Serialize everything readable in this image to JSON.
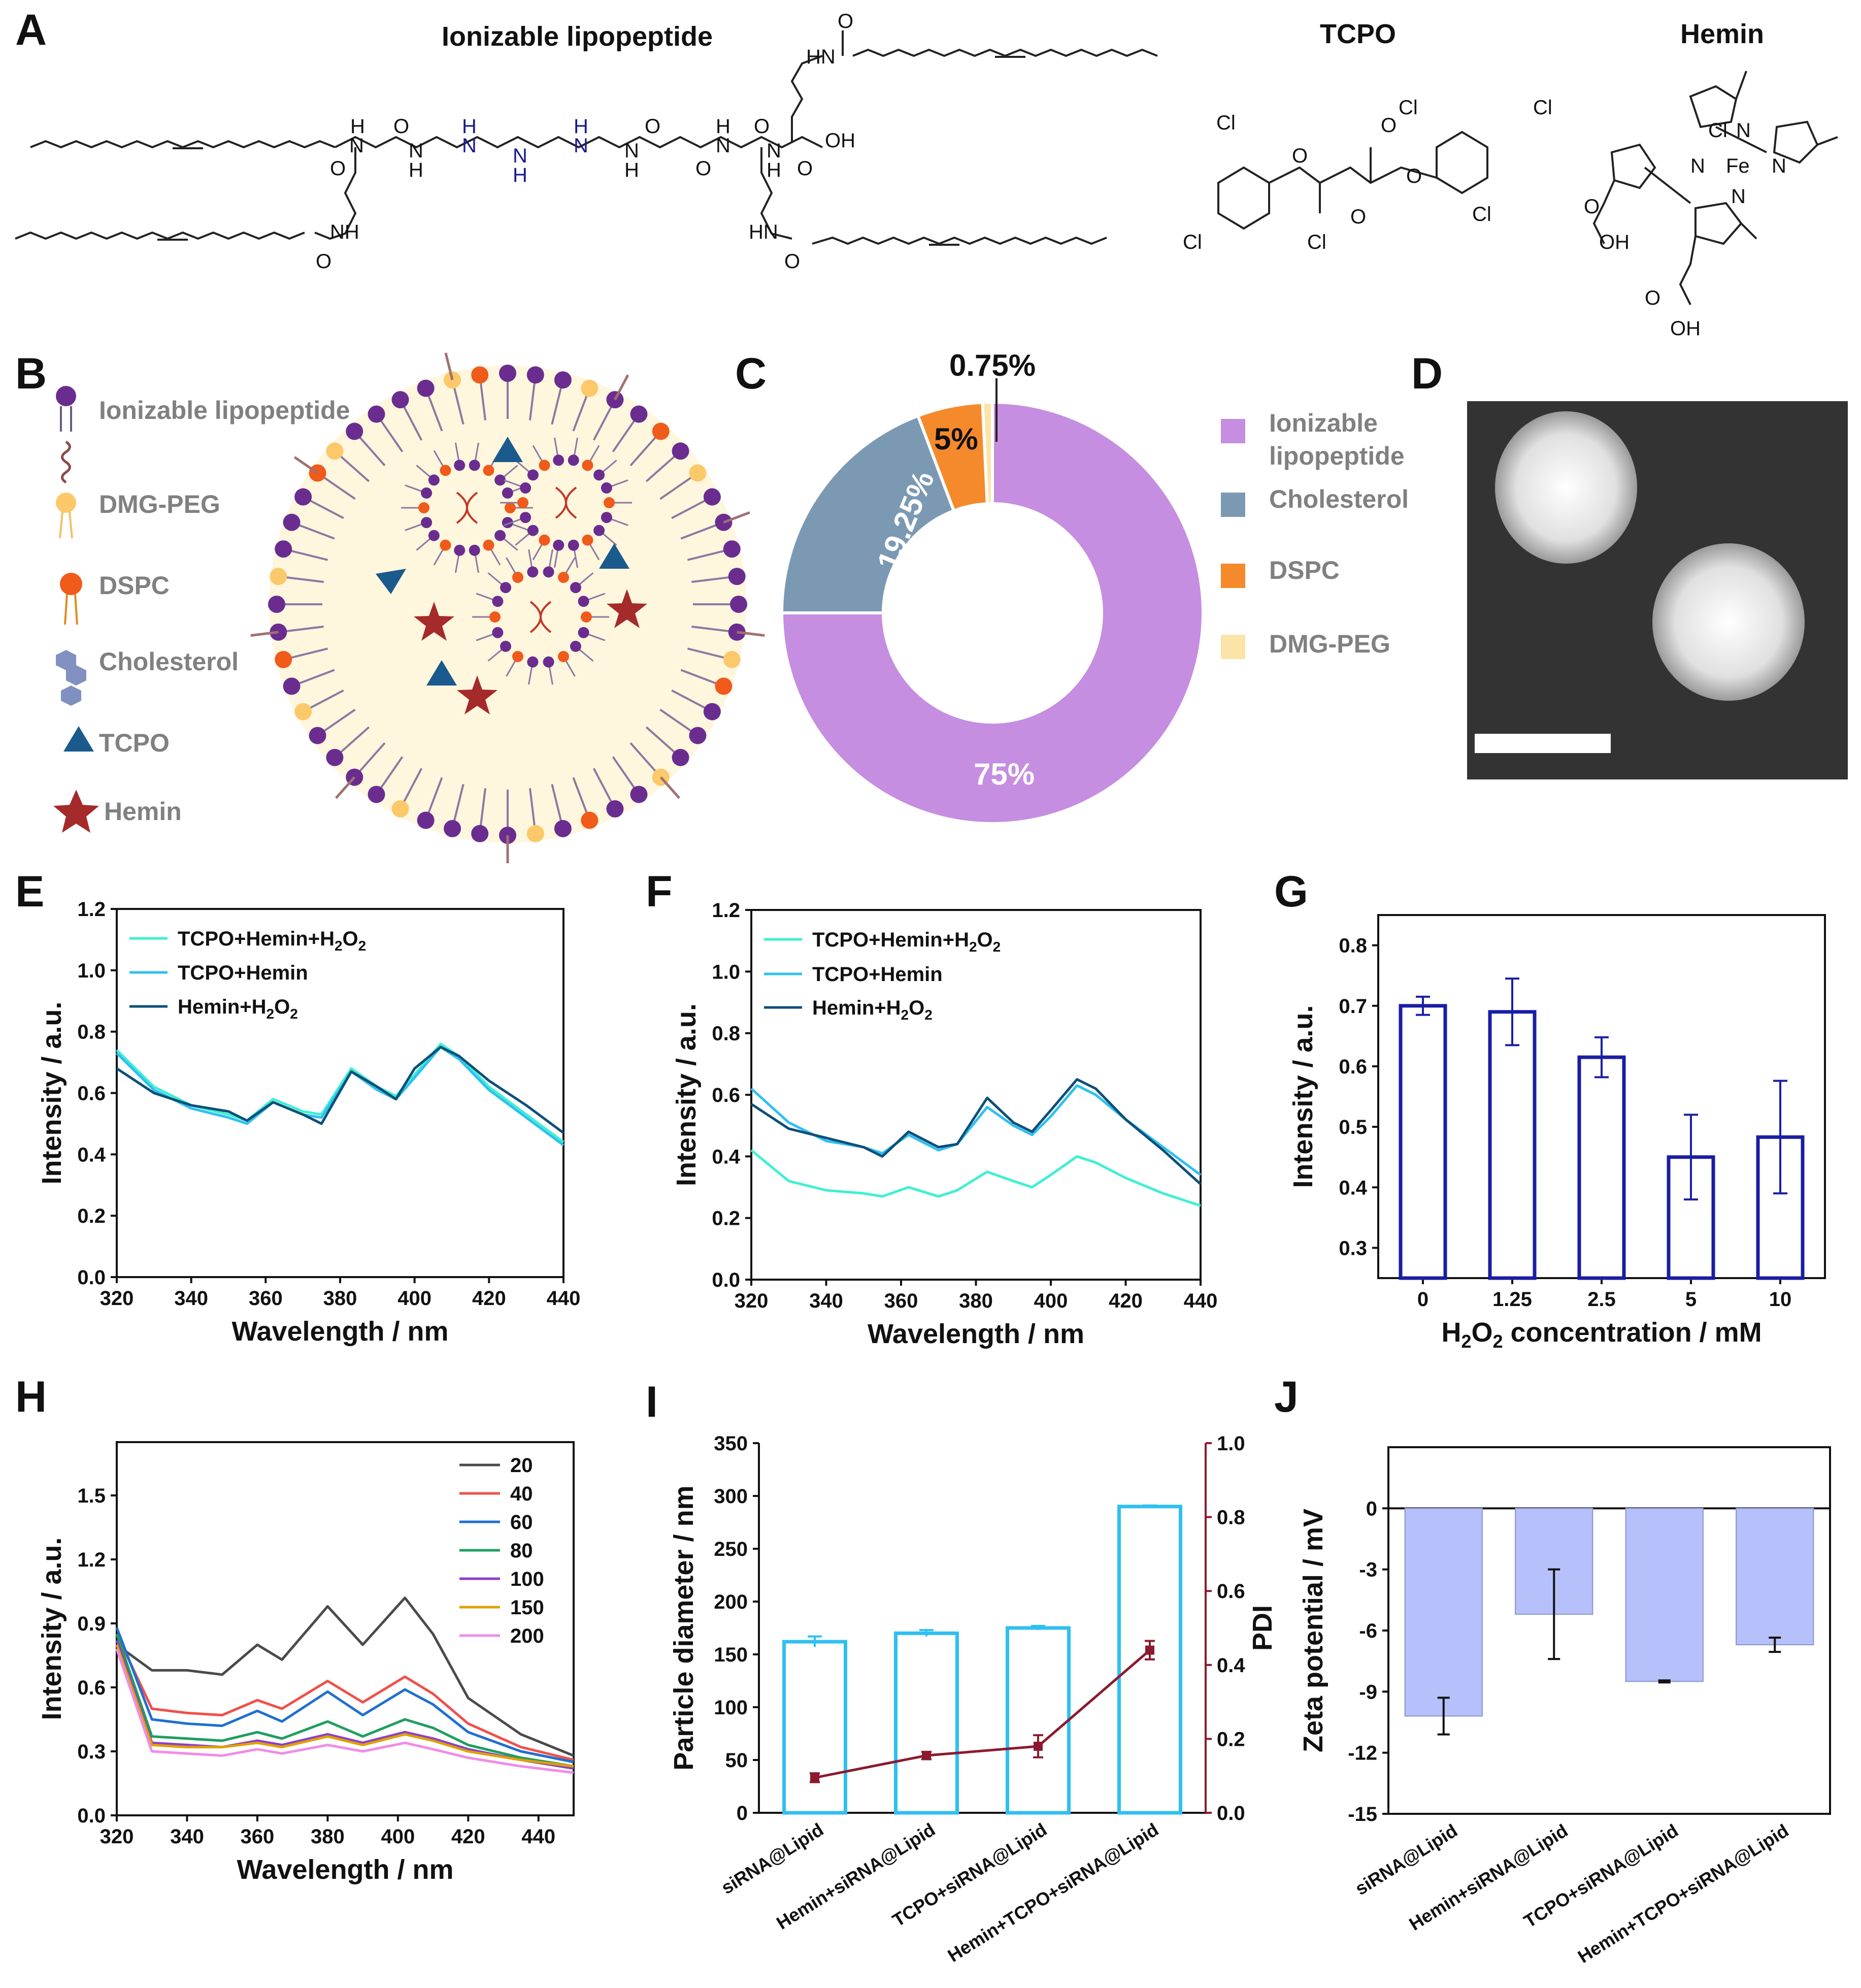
{
  "panels": {
    "A": "A",
    "B": "B",
    "C": "C",
    "D": "D",
    "E": "E",
    "F": "F",
    "G": "G",
    "H": "H",
    "I": "I",
    "J": "J"
  },
  "panelA": {
    "titles": {
      "lipopeptide": "Ionizable lipopeptide",
      "tcpo": "TCPO",
      "hemin": "Hemin"
    },
    "atoms": {
      "H": "H",
      "N": "N",
      "O": "O",
      "OH": "OH",
      "NH": "NH",
      "HN": "HN",
      "Cl": "Cl",
      "Fe": "Fe"
    }
  },
  "panelB": {
    "legend": [
      "Ionizable lipopeptide",
      "DMG-PEG",
      "DSPC",
      "Cholesterol",
      "TCPO",
      "Hemin"
    ]
  },
  "panelC": {
    "legend": [
      "Ionizable",
      "lipopeptide",
      "Cholesterol",
      "DSPC",
      "DMG-PEG"
    ]
  },
  "panelE": {
    "legend": [
      "TCPO+Hemin+H",
      "2",
      "O",
      "2",
      "TCPO+Hemin",
      "Hemin+H",
      "2",
      "O",
      "2"
    ]
  },
  "panelF": {
    "legend": [
      "TCPO+Hemin+H",
      "2",
      "O",
      "2",
      "TCPO+Hemin",
      "Hemin+H",
      "2",
      "O",
      "2"
    ]
  },
  "colors": {
    "teal": "#3ef0d2",
    "cyan": "#2ec0f0",
    "navy": "#0d4f78",
    "purple": "#c58ee0",
    "slate": "#7c99b4",
    "orange": "#f58a2c",
    "pale": "#fbe4a8",
    "bar": "#1a1ea3",
    "cyanbar": "#2ec0f0",
    "pdi": "#8b1a2e",
    "lav": "#b6c0fb"
  },
  "chart_data": [
    {
      "panel": "C",
      "type": "pie",
      "title": "",
      "categories": [
        "Ionizable lipopeptide",
        "Cholesterol",
        "DSPC",
        "DMG-PEG"
      ],
      "values": [
        75,
        19.25,
        5,
        0.75
      ],
      "labels": [
        "75%",
        "19.25%",
        "5%",
        "0.75%"
      ]
    },
    {
      "panel": "E",
      "type": "line",
      "xlabel": "Wavelength / nm",
      "ylabel": "Intensity / a.u.",
      "xlim": [
        320,
        440
      ],
      "ylim": [
        0,
        1.2
      ],
      "xticks": [
        "320",
        "340",
        "360",
        "380",
        "400",
        "420",
        "440"
      ],
      "yticks": [
        "0.0",
        "0.2",
        "0.4",
        "0.6",
        "0.8",
        "1.0",
        "1.2"
      ],
      "series": [
        {
          "name": "TCPO+Hemin+H2O2",
          "x": [
            320,
            330,
            340,
            350,
            355,
            362,
            370,
            375,
            383,
            390,
            395,
            400,
            407,
            412,
            420,
            430,
            440
          ],
          "y": [
            0.74,
            0.62,
            0.56,
            0.53,
            0.51,
            0.58,
            0.54,
            0.53,
            0.68,
            0.62,
            0.59,
            0.66,
            0.76,
            0.72,
            0.62,
            0.53,
            0.44
          ]
        },
        {
          "name": "TCPO+Hemin",
          "x": [
            320,
            330,
            340,
            350,
            355,
            362,
            370,
            375,
            383,
            390,
            395,
            400,
            407,
            412,
            420,
            430,
            440
          ],
          "y": [
            0.73,
            0.61,
            0.55,
            0.52,
            0.5,
            0.57,
            0.53,
            0.52,
            0.67,
            0.61,
            0.58,
            0.65,
            0.75,
            0.71,
            0.61,
            0.52,
            0.43
          ]
        },
        {
          "name": "Hemin+H2O2",
          "x": [
            320,
            330,
            340,
            350,
            355,
            362,
            370,
            375,
            383,
            390,
            395,
            400,
            407,
            412,
            420,
            430,
            440
          ],
          "y": [
            0.68,
            0.6,
            0.56,
            0.54,
            0.51,
            0.57,
            0.53,
            0.5,
            0.67,
            0.62,
            0.58,
            0.68,
            0.75,
            0.72,
            0.64,
            0.56,
            0.47
          ]
        }
      ]
    },
    {
      "panel": "F",
      "type": "line",
      "xlabel": "Wavelength / nm",
      "ylabel": "Intensity / a.u.",
      "xlim": [
        320,
        440
      ],
      "ylim": [
        0,
        1.2
      ],
      "xticks": [
        "320",
        "340",
        "360",
        "380",
        "400",
        "420",
        "440"
      ],
      "yticks": [
        "0.0",
        "0.2",
        "0.4",
        "0.6",
        "0.8",
        "1.0",
        "1.2"
      ],
      "series": [
        {
          "name": "TCPO+Hemin+H2O2",
          "x": [
            320,
            330,
            340,
            350,
            355,
            362,
            370,
            375,
            383,
            390,
            395,
            400,
            407,
            412,
            420,
            430,
            440
          ],
          "y": [
            0.42,
            0.32,
            0.29,
            0.28,
            0.27,
            0.3,
            0.27,
            0.29,
            0.35,
            0.32,
            0.3,
            0.34,
            0.4,
            0.38,
            0.33,
            0.28,
            0.24
          ]
        },
        {
          "name": "TCPO+Hemin",
          "x": [
            320,
            330,
            340,
            350,
            355,
            362,
            370,
            375,
            383,
            390,
            395,
            400,
            407,
            412,
            420,
            430,
            440
          ],
          "y": [
            0.62,
            0.51,
            0.45,
            0.43,
            0.41,
            0.47,
            0.42,
            0.44,
            0.56,
            0.5,
            0.47,
            0.53,
            0.63,
            0.6,
            0.52,
            0.43,
            0.34
          ]
        },
        {
          "name": "Hemin+H2O2",
          "x": [
            320,
            330,
            340,
            350,
            355,
            362,
            370,
            375,
            383,
            390,
            395,
            400,
            407,
            412,
            420,
            430,
            440
          ],
          "y": [
            0.57,
            0.49,
            0.46,
            0.43,
            0.4,
            0.48,
            0.43,
            0.44,
            0.59,
            0.51,
            0.48,
            0.55,
            0.65,
            0.62,
            0.52,
            0.42,
            0.31
          ]
        }
      ]
    },
    {
      "panel": "G",
      "type": "bar",
      "xlabel": "H2O2 concentration / mM",
      "ylabel": "Intensity / a.u.",
      "categories": [
        "0",
        "1.25",
        "2.5",
        "5",
        "10"
      ],
      "values": [
        0.7,
        0.69,
        0.615,
        0.45,
        0.483
      ],
      "errors": [
        0.015,
        0.055,
        0.033,
        0.07,
        0.093
      ],
      "ylim": [
        0.25,
        0.85
      ],
      "yticks": [
        "0.3",
        "0.4",
        "0.5",
        "0.6",
        "0.7",
        "0.8"
      ]
    },
    {
      "panel": "H",
      "type": "line",
      "xlabel": "Wavelength / nm",
      "ylabel": "Intensity / a.u.",
      "xlim": [
        320,
        450
      ],
      "ylim": [
        0,
        1.75
      ],
      "xticks": [
        "320",
        "340",
        "360",
        "380",
        "400",
        "420",
        "440"
      ],
      "yticks": [
        "0.0",
        "0.3",
        "0.6",
        "0.9",
        "1.2",
        "1.5"
      ],
      "series": [
        {
          "name": "20",
          "color": "#4a4a4a",
          "x": [
            320,
            330,
            340,
            350,
            360,
            367,
            380,
            390,
            402,
            410,
            420,
            435,
            450
          ],
          "y": [
            0.8,
            0.68,
            0.68,
            0.66,
            0.8,
            0.73,
            0.98,
            0.8,
            1.02,
            0.85,
            0.55,
            0.38,
            0.28
          ]
        },
        {
          "name": "40",
          "color": "#f0504a",
          "x": [
            320,
            330,
            340,
            350,
            360,
            367,
            380,
            390,
            402,
            410,
            420,
            435,
            450
          ],
          "y": [
            0.85,
            0.5,
            0.48,
            0.47,
            0.54,
            0.5,
            0.63,
            0.53,
            0.65,
            0.57,
            0.43,
            0.32,
            0.26
          ]
        },
        {
          "name": "60",
          "color": "#1f6fd0",
          "x": [
            320,
            330,
            340,
            350,
            360,
            367,
            380,
            390,
            402,
            410,
            420,
            435,
            450
          ],
          "y": [
            0.88,
            0.45,
            0.43,
            0.42,
            0.49,
            0.44,
            0.58,
            0.47,
            0.59,
            0.52,
            0.39,
            0.3,
            0.25
          ]
        },
        {
          "name": "80",
          "color": "#1e9e60",
          "x": [
            320,
            330,
            340,
            350,
            360,
            367,
            380,
            390,
            402,
            410,
            420,
            435,
            450
          ],
          "y": [
            0.85,
            0.37,
            0.36,
            0.35,
            0.39,
            0.36,
            0.44,
            0.37,
            0.45,
            0.41,
            0.33,
            0.27,
            0.23
          ]
        },
        {
          "name": "100",
          "color": "#8a3fd0",
          "x": [
            320,
            330,
            340,
            350,
            360,
            367,
            380,
            390,
            402,
            410,
            420,
            435,
            450
          ],
          "y": [
            0.82,
            0.34,
            0.33,
            0.32,
            0.35,
            0.33,
            0.38,
            0.34,
            0.39,
            0.36,
            0.31,
            0.26,
            0.22
          ]
        },
        {
          "name": "150",
          "color": "#e0a000",
          "x": [
            320,
            330,
            340,
            350,
            360,
            367,
            380,
            390,
            402,
            410,
            420,
            435,
            450
          ],
          "y": [
            0.8,
            0.33,
            0.32,
            0.32,
            0.34,
            0.32,
            0.37,
            0.33,
            0.38,
            0.35,
            0.3,
            0.26,
            0.23
          ]
        },
        {
          "name": "200",
          "color": "#f08ce8",
          "x": [
            320,
            330,
            340,
            350,
            360,
            367,
            380,
            390,
            402,
            410,
            420,
            435,
            450
          ],
          "y": [
            0.78,
            0.3,
            0.29,
            0.28,
            0.31,
            0.29,
            0.33,
            0.3,
            0.34,
            0.31,
            0.27,
            0.23,
            0.2
          ]
        }
      ]
    },
    {
      "panel": "I",
      "type": "bar",
      "ylabel": "Particle diameter / nm",
      "y2label": "PDI",
      "categories": [
        "siRNA@Lipid",
        "Hemin+siRNA@Lipid",
        "TCPO+siRNA@Lipid",
        "Hemin+TCPO+siRNA@Lipid"
      ],
      "series": [
        {
          "name": "Particle diameter",
          "values": [
            162,
            170,
            175,
            290
          ],
          "errors": [
            5,
            3,
            2,
            1
          ]
        },
        {
          "name": "PDI",
          "values": [
            0.095,
            0.155,
            0.18,
            0.44
          ],
          "errors": [
            0.012,
            0.01,
            0.03,
            0.025
          ]
        }
      ],
      "ylim": [
        0,
        350
      ],
      "y2lim": [
        0,
        1.0
      ],
      "yticks": [
        "0",
        "50",
        "100",
        "150",
        "200",
        "250",
        "300",
        "350"
      ],
      "y2ticks": [
        "0.0",
        "0.2",
        "0.4",
        "0.6",
        "0.8",
        "1.0"
      ]
    },
    {
      "panel": "J",
      "type": "bar",
      "ylabel": "Zeta potential / mV",
      "categories": [
        "siRNA@Lipid",
        "Hemin+siRNA@Lipid",
        "TCPO+siRNA@Lipid",
        "Hemin+TCPO+siRNA@Lipid"
      ],
      "values": [
        -10.2,
        -5.2,
        -8.5,
        -6.7
      ],
      "errors": [
        0.9,
        2.2,
        0.05,
        0.35
      ],
      "ylim": [
        -15,
        3
      ],
      "yticks": [
        "0",
        "-3",
        "-6",
        "-9",
        "-12",
        "-15"
      ]
    }
  ]
}
